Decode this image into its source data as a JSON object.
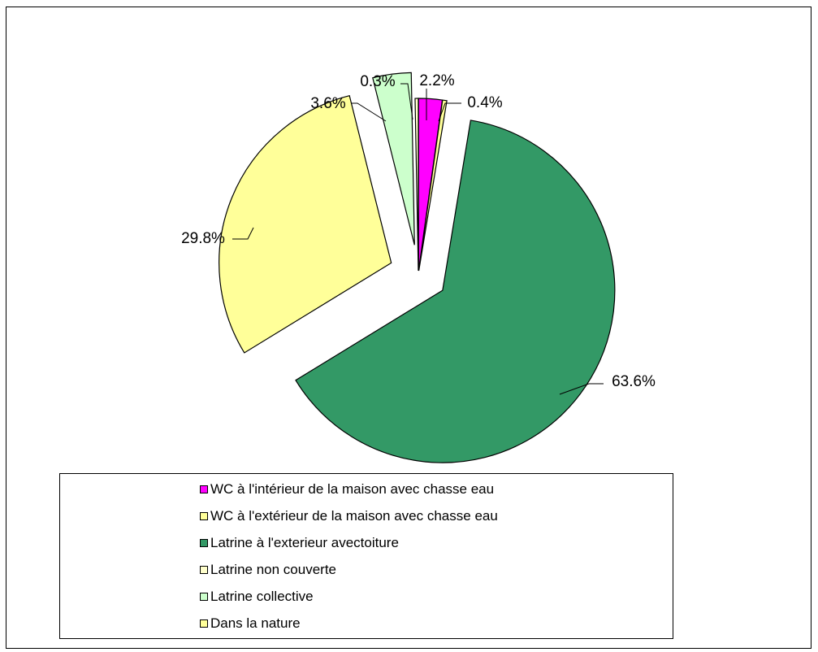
{
  "chart_data": {
    "type": "pie",
    "title": "",
    "slices": [
      {
        "label": "WC à l'intérieur de la maison avec chasse eau",
        "value": 2.2,
        "display": "2.2%",
        "color": "#ff00ff"
      },
      {
        "label": "Dans la nature",
        "value": 0.4,
        "display": "0.4%",
        "color": "#ffff99"
      },
      {
        "label": "Latrine à l'exterieur avectoiture",
        "value": 63.6,
        "display": "63.6%",
        "color": "#339966"
      },
      {
        "label": "WC à l'extérieur de la maison avec chasse eau",
        "value": 29.8,
        "display": "29.8%",
        "color": "#ffff99"
      },
      {
        "label": "Latrine collective",
        "value": 3.6,
        "display": "3.6%",
        "color": "#ccffcc"
      },
      {
        "label": "Latrine non couverte",
        "value": 0.3,
        "display": "0.3%",
        "color": "#ffffcc"
      }
    ],
    "legend": {
      "position": "bottom",
      "entries": [
        {
          "label": "WC à l'intérieur de la maison avec chasse eau",
          "color": "#ff00ff"
        },
        {
          "label": "WC à l'extérieur de la maison avec chasse eau",
          "color": "#ffff99"
        },
        {
          "label": "Latrine à l'exterieur avectoiture",
          "color": "#339966"
        },
        {
          "label": "Latrine non couverte",
          "color": "#ffffcc"
        },
        {
          "label": "Latrine collective",
          "color": "#ccffcc"
        },
        {
          "label": "Dans la nature",
          "color": "#ffff99"
        }
      ]
    }
  }
}
